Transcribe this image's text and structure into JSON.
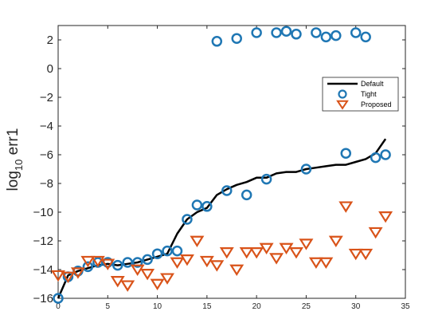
{
  "chart_data": {
    "type": "scatter",
    "title": "",
    "xlabel": "",
    "ylabel": "log",
    "ylabel_sub": "10",
    "ylabel_suffix": " err1",
    "xlim": [
      0,
      35
    ],
    "ylim": [
      -16,
      3
    ],
    "xticks": [
      0,
      5,
      10,
      15,
      20,
      25,
      30,
      35
    ],
    "yticks": [
      -16,
      -14,
      -12,
      -10,
      -8,
      -6,
      -4,
      -2,
      0,
      2
    ],
    "grid": false,
    "legend_placement": "upper-right",
    "series": [
      {
        "name": "Default",
        "style": "line",
        "color": "#000000",
        "x": [
          0,
          1,
          2,
          3,
          4,
          5,
          6,
          7,
          8,
          9,
          10,
          11,
          12,
          13,
          14,
          15,
          16,
          17,
          18,
          19,
          20,
          21,
          22,
          23,
          24,
          25,
          26,
          27,
          28,
          29,
          30,
          31,
          32,
          33
        ],
        "y": [
          -16.0,
          -14.4,
          -14.1,
          -13.9,
          -13.7,
          -13.6,
          -13.7,
          -13.6,
          -13.5,
          -13.3,
          -13.1,
          -12.9,
          -11.5,
          -10.5,
          -10.0,
          -9.7,
          -8.8,
          -8.4,
          -8.1,
          -7.9,
          -7.6,
          -7.6,
          -7.3,
          -7.2,
          -7.2,
          -7.0,
          -6.9,
          -6.8,
          -6.7,
          -6.7,
          -6.5,
          -6.3,
          -5.9,
          -4.9
        ]
      },
      {
        "name": "Tight",
        "style": "circle",
        "color": "#1f77b4",
        "x": [
          0,
          1,
          2,
          3,
          4,
          5,
          6,
          7,
          8,
          9,
          10,
          11,
          12,
          13,
          14,
          15,
          16,
          17,
          18,
          19,
          20,
          21,
          22,
          23,
          24,
          25,
          26,
          27,
          28,
          29,
          30,
          31,
          32,
          33
        ],
        "y": [
          -16.0,
          -14.5,
          -14.1,
          -13.8,
          -13.5,
          -13.5,
          -13.7,
          -13.5,
          -13.5,
          -13.3,
          -12.9,
          -12.7,
          -12.7,
          -10.5,
          -9.5,
          -9.6,
          1.9,
          -8.5,
          2.1,
          -8.8,
          2.5,
          -7.7,
          2.5,
          2.6,
          2.4,
          -7.0,
          2.5,
          2.2,
          2.3,
          -5.9,
          2.5,
          2.2,
          -6.2,
          -6.0
        ]
      },
      {
        "name": "Proposed",
        "style": "triangle-down",
        "color": "#d95319",
        "x": [
          0,
          1,
          2,
          3,
          4,
          5,
          6,
          7,
          8,
          9,
          10,
          11,
          12,
          13,
          14,
          15,
          16,
          17,
          18,
          19,
          20,
          21,
          22,
          23,
          24,
          25,
          26,
          27,
          28,
          29,
          30,
          31,
          32,
          33
        ],
        "y": [
          -14.4,
          -14.5,
          -14.2,
          -13.4,
          -13.4,
          -13.6,
          -14.8,
          -15.1,
          -14.0,
          -14.3,
          -15.0,
          -14.6,
          -13.5,
          -13.3,
          -12.0,
          -13.4,
          -13.7,
          -12.8,
          -14.0,
          -12.8,
          -12.8,
          -12.5,
          -13.2,
          -12.5,
          -12.8,
          -12.2,
          -13.5,
          -13.5,
          -12.0,
          -9.6,
          -12.9,
          -12.9,
          -11.4,
          -10.3
        ]
      }
    ]
  }
}
